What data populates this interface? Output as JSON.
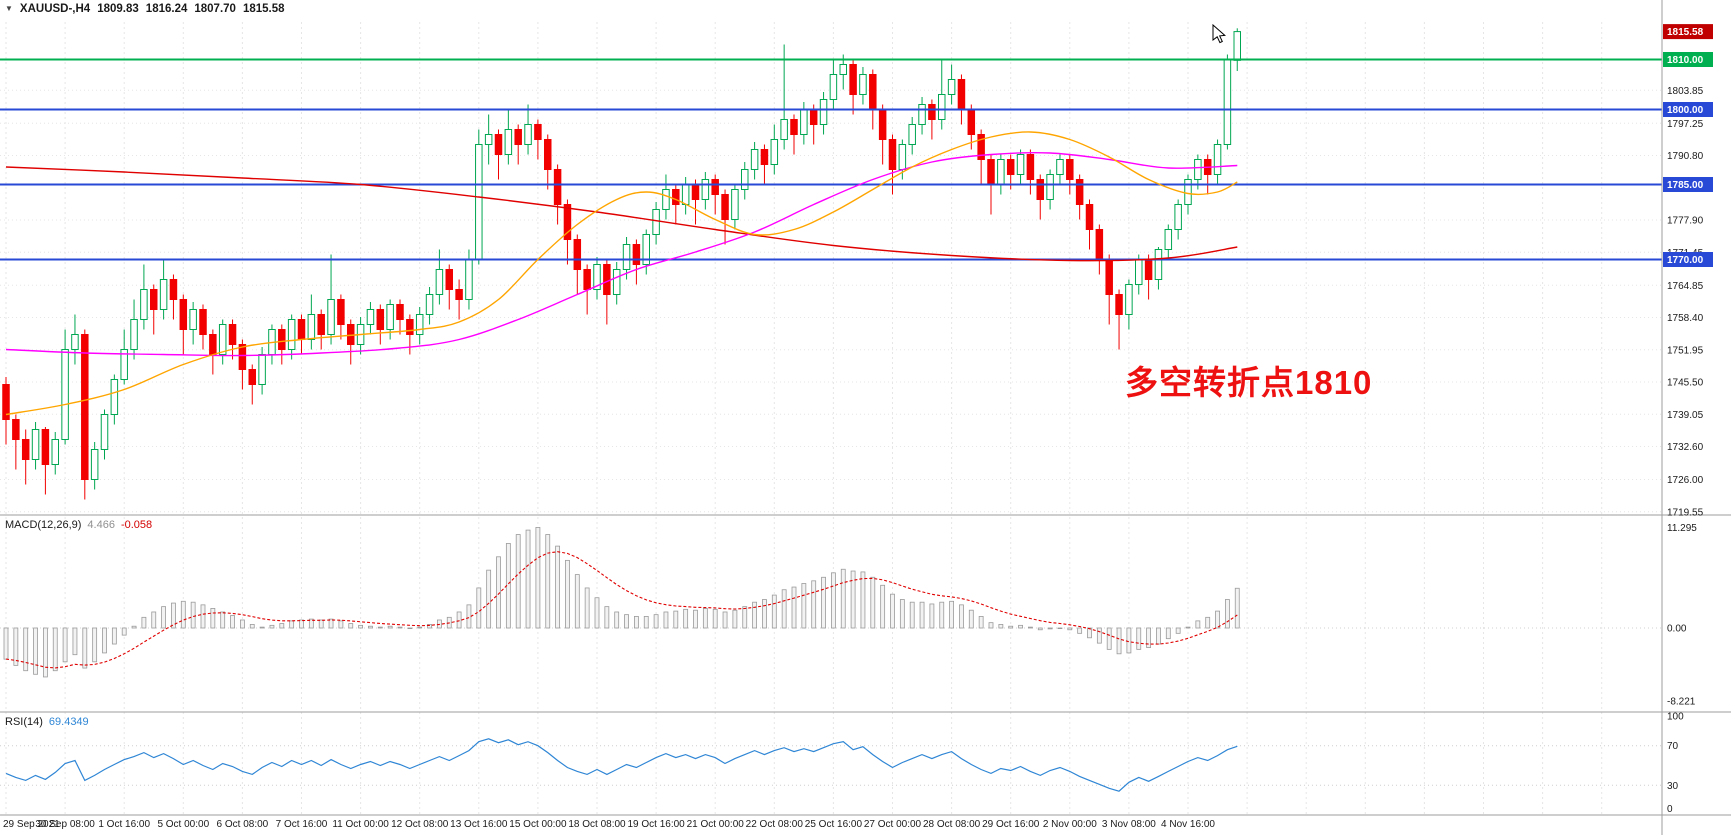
{
  "icons": {
    "symbol_marker": "▼"
  },
  "toolbar": {
    "symbol_period": "XAUUSD-,H4",
    "open": "1809.83",
    "high": "1816.24",
    "low": "1807.70",
    "close": "1815.58"
  },
  "annotation": {
    "text": "多空转折点1810"
  },
  "colors": {
    "candle_up": "#00a651",
    "candle_down": "#f20000",
    "ma_slow_red": "#e00000",
    "ma_medium_magenta": "#ff00ff",
    "ma_fast_orange": "#ffa500",
    "macd_histogram": "#9a9a9a",
    "macd_signal": "#e00000",
    "rsi_line": "#2f86d5",
    "hline_green": "#00b050",
    "hline_blue": "#2849d6",
    "last_price_badge_bg": "#c00000",
    "grid": "#e6e6e6",
    "axis_text": "#1a1a1a",
    "separator": "#9e9e9e",
    "annotation_red": "#ee1111"
  },
  "chart_data": {
    "type": "candlestick",
    "symbol": "XAUUSD-",
    "timeframe": "H4",
    "candles_per_label": 6,
    "x_labels": [
      "29 Sep 2021",
      "30 Sep 08:00",
      "1 Oct 16:00",
      "5 Oct 00:00",
      "6 Oct 08:00",
      "7 Oct 16:00",
      "11 Oct 00:00",
      "12 Oct 08:00",
      "13 Oct 16:00",
      "15 Oct 00:00",
      "18 Oct 08:00",
      "19 Oct 16:00",
      "21 Oct 00:00",
      "22 Oct 08:00",
      "25 Oct 16:00",
      "27 Oct 00:00",
      "28 Oct 08:00",
      "29 Oct 16:00",
      "2 Nov 00:00",
      "3 Nov 08:00",
      "4 Nov 16:00"
    ],
    "price_axis_ticks": [
      "1803.85",
      "1797.25",
      "1790.80",
      "1777.90",
      "1771.45",
      "1764.85",
      "1758.40",
      "1751.95",
      "1745.50",
      "1739.05",
      "1732.60",
      "1726.00",
      "1719.55"
    ],
    "last_price": {
      "label": "1815.58",
      "value": 1815.58
    },
    "hlines": [
      {
        "label": "1810.00",
        "price": 1810.0,
        "color": "#00b050"
      },
      {
        "label": "1800.00",
        "price": 1800.0,
        "color": "#2849d6"
      },
      {
        "label": "1785.00",
        "price": 1785.0,
        "color": "#2849d6"
      },
      {
        "label": "1770.00",
        "price": 1770.0,
        "color": "#2849d6"
      }
    ],
    "candles": [
      [
        1745,
        1746.5,
        1733,
        1738
      ],
      [
        1738,
        1739,
        1728,
        1734
      ],
      [
        1734,
        1736,
        1725,
        1730
      ],
      [
        1730,
        1737.5,
        1728,
        1736
      ],
      [
        1736,
        1736.5,
        1723,
        1729
      ],
      [
        1729,
        1735.5,
        1727,
        1734
      ],
      [
        1734,
        1756,
        1733,
        1752
      ],
      [
        1752,
        1759,
        1749,
        1755
      ],
      [
        1755,
        1756,
        1722,
        1726
      ],
      [
        1726,
        1733.5,
        1724,
        1732
      ],
      [
        1732,
        1740,
        1730,
        1739
      ],
      [
        1739,
        1747,
        1737,
        1746
      ],
      [
        1746,
        1756,
        1745,
        1752
      ],
      [
        1752,
        1762,
        1750,
        1758
      ],
      [
        1758,
        1769,
        1756,
        1764
      ],
      [
        1764,
        1765,
        1755,
        1760
      ],
      [
        1760,
        1770,
        1758,
        1766
      ],
      [
        1766,
        1767,
        1758,
        1762
      ],
      [
        1762,
        1763,
        1751,
        1756
      ],
      [
        1756,
        1761.5,
        1753,
        1760
      ],
      [
        1760,
        1761,
        1752,
        1755
      ],
      [
        1755,
        1756,
        1747,
        1751
      ],
      [
        1751,
        1758,
        1749,
        1757
      ],
      [
        1757,
        1758,
        1750,
        1753
      ],
      [
        1753,
        1754,
        1744,
        1748
      ],
      [
        1748,
        1749,
        1741,
        1745
      ],
      [
        1745,
        1752.5,
        1743,
        1751
      ],
      [
        1751,
        1757,
        1749,
        1756
      ],
      [
        1756,
        1757,
        1749,
        1752
      ],
      [
        1752,
        1759,
        1750,
        1758
      ],
      [
        1758,
        1759,
        1751,
        1754
      ],
      [
        1754,
        1763,
        1752,
        1759
      ],
      [
        1759,
        1760,
        1752,
        1755
      ],
      [
        1755,
        1771,
        1753,
        1762
      ],
      [
        1762,
        1763,
        1754,
        1757
      ],
      [
        1757,
        1758,
        1749,
        1753
      ],
      [
        1753,
        1758.5,
        1751,
        1757
      ],
      [
        1757,
        1761.5,
        1755,
        1760
      ],
      [
        1760,
        1761,
        1753,
        1756
      ],
      [
        1756,
        1762,
        1754,
        1761
      ],
      [
        1761,
        1762,
        1755,
        1758
      ],
      [
        1758,
        1759,
        1751,
        1755
      ],
      [
        1755,
        1760.5,
        1753,
        1759
      ],
      [
        1759,
        1764.5,
        1757,
        1763
      ],
      [
        1763,
        1772,
        1761,
        1768
      ],
      [
        1768,
        1769,
        1760,
        1764
      ],
      [
        1764,
        1766,
        1758,
        1762
      ],
      [
        1762,
        1772,
        1760,
        1770
      ],
      [
        1770,
        1796,
        1769,
        1793
      ],
      [
        1793,
        1799,
        1789,
        1795
      ],
      [
        1795,
        1796,
        1786,
        1791
      ],
      [
        1791,
        1800,
        1789,
        1796
      ],
      [
        1796,
        1797,
        1789,
        1793
      ],
      [
        1793,
        1801,
        1791,
        1797
      ],
      [
        1797,
        1798,
        1790,
        1794
      ],
      [
        1794,
        1795,
        1784,
        1788
      ],
      [
        1788,
        1789,
        1777,
        1781
      ],
      [
        1781,
        1782,
        1769,
        1774
      ],
      [
        1774,
        1775,
        1763,
        1768
      ],
      [
        1768,
        1769,
        1759,
        1764
      ],
      [
        1764,
        1770.5,
        1762,
        1769
      ],
      [
        1769,
        1770,
        1757,
        1763
      ],
      [
        1763,
        1769.5,
        1761,
        1768
      ],
      [
        1768,
        1774.5,
        1766,
        1773
      ],
      [
        1773,
        1774,
        1765,
        1769
      ],
      [
        1769,
        1776,
        1767,
        1775
      ],
      [
        1775,
        1781.5,
        1773,
        1780
      ],
      [
        1780,
        1787,
        1778,
        1784
      ],
      [
        1784,
        1785,
        1777,
        1781
      ],
      [
        1781,
        1786.5,
        1779,
        1785
      ],
      [
        1785,
        1786,
        1777,
        1782
      ],
      [
        1782,
        1787.5,
        1780,
        1786
      ],
      [
        1786,
        1787,
        1779,
        1783
      ],
      [
        1783,
        1784,
        1773,
        1778
      ],
      [
        1778,
        1785,
        1776,
        1784
      ],
      [
        1784,
        1789.5,
        1782,
        1788
      ],
      [
        1788,
        1793.5,
        1786,
        1792
      ],
      [
        1792,
        1793,
        1785,
        1789
      ],
      [
        1789,
        1797,
        1787,
        1794
      ],
      [
        1794,
        1813,
        1792,
        1798
      ],
      [
        1798,
        1799,
        1791,
        1795
      ],
      [
        1795,
        1801.5,
        1793,
        1800
      ],
      [
        1800,
        1801,
        1793,
        1797
      ],
      [
        1797,
        1803.5,
        1795,
        1802
      ],
      [
        1802,
        1810,
        1800,
        1807
      ],
      [
        1807,
        1811,
        1804,
        1809
      ],
      [
        1809,
        1810,
        1799,
        1803
      ],
      [
        1803,
        1808.5,
        1801,
        1807
      ],
      [
        1807,
        1808,
        1796,
        1800
      ],
      [
        1800,
        1801,
        1789,
        1794
      ],
      [
        1794,
        1795,
        1783,
        1788
      ],
      [
        1788,
        1794,
        1786,
        1793
      ],
      [
        1793,
        1798.5,
        1791,
        1797
      ],
      [
        1797,
        1802.5,
        1795,
        1801
      ],
      [
        1801,
        1802,
        1794,
        1798
      ],
      [
        1798,
        1810,
        1796,
        1803
      ],
      [
        1803,
        1809,
        1801,
        1806
      ],
      [
        1806,
        1807,
        1797,
        1800
      ],
      [
        1800,
        1801,
        1792,
        1795
      ],
      [
        1795,
        1796,
        1785,
        1790
      ],
      [
        1790,
        1791,
        1779,
        1785
      ],
      [
        1785,
        1791,
        1783,
        1790
      ],
      [
        1790,
        1791,
        1784,
        1787
      ],
      [
        1787,
        1792,
        1785,
        1791
      ],
      [
        1791,
        1792,
        1783,
        1786
      ],
      [
        1786,
        1787,
        1778,
        1782
      ],
      [
        1782,
        1788,
        1780,
        1787
      ],
      [
        1787,
        1791,
        1785,
        1790
      ],
      [
        1790,
        1791,
        1783,
        1786
      ],
      [
        1786,
        1787,
        1778,
        1781
      ],
      [
        1781,
        1782,
        1772,
        1776
      ],
      [
        1776,
        1777,
        1767,
        1770
      ],
      [
        1770,
        1771,
        1757,
        1763
      ],
      [
        1763,
        1764,
        1752,
        1759
      ],
      [
        1759,
        1766,
        1756,
        1765
      ],
      [
        1765,
        1771,
        1763,
        1770
      ],
      [
        1770,
        1771,
        1762,
        1766
      ],
      [
        1766,
        1772.5,
        1764,
        1772
      ],
      [
        1772,
        1777,
        1770,
        1776
      ],
      [
        1776,
        1782,
        1774,
        1781
      ],
      [
        1781,
        1787,
        1779,
        1786
      ],
      [
        1786,
        1791,
        1784,
        1790
      ],
      [
        1790,
        1791,
        1783,
        1787
      ],
      [
        1787,
        1794,
        1785,
        1793
      ],
      [
        1793,
        1811,
        1792,
        1810
      ],
      [
        1809.83,
        1816.24,
        1807.7,
        1815.58
      ]
    ],
    "moving_averages": [
      {
        "name": "ma-slow",
        "color": "#e00000",
        "points": [
          [
            0,
            1788.5
          ],
          [
            12,
            1787.5
          ],
          [
            24,
            1786.3
          ],
          [
            36,
            1785
          ],
          [
            48,
            1782.5
          ],
          [
            60,
            1779.5
          ],
          [
            72,
            1776
          ],
          [
            84,
            1772.8
          ],
          [
            96,
            1770.8
          ],
          [
            108,
            1769.8
          ],
          [
            118,
            1770.3
          ],
          [
            125,
            1772.5
          ]
        ]
      },
      {
        "name": "ma-medium",
        "color": "#ff00ff",
        "points": [
          [
            0,
            1752
          ],
          [
            8,
            1751.3
          ],
          [
            16,
            1751
          ],
          [
            24,
            1750.8
          ],
          [
            32,
            1751.3
          ],
          [
            40,
            1752.3
          ],
          [
            46,
            1754
          ],
          [
            52,
            1758
          ],
          [
            58,
            1763
          ],
          [
            64,
            1768
          ],
          [
            70,
            1771.5
          ],
          [
            76,
            1775.5
          ],
          [
            82,
            1781
          ],
          [
            88,
            1786
          ],
          [
            94,
            1789.5
          ],
          [
            100,
            1791
          ],
          [
            106,
            1791.3
          ],
          [
            112,
            1790
          ],
          [
            118,
            1788.3
          ],
          [
            125,
            1788.8
          ]
        ]
      },
      {
        "name": "ma-fast",
        "color": "#ffa500",
        "points": [
          [
            0,
            1739
          ],
          [
            6,
            1741
          ],
          [
            12,
            1744
          ],
          [
            18,
            1749
          ],
          [
            24,
            1752.5
          ],
          [
            30,
            1754
          ],
          [
            36,
            1755
          ],
          [
            42,
            1756
          ],
          [
            46,
            1757.5
          ],
          [
            50,
            1762
          ],
          [
            54,
            1770
          ],
          [
            58,
            1777
          ],
          [
            62,
            1782
          ],
          [
            65,
            1783.5
          ],
          [
            68,
            1782
          ],
          [
            72,
            1778
          ],
          [
            76,
            1775
          ],
          [
            80,
            1776
          ],
          [
            84,
            1779.5
          ],
          [
            88,
            1784
          ],
          [
            92,
            1788.5
          ],
          [
            96,
            1792
          ],
          [
            100,
            1794.5
          ],
          [
            104,
            1795.5
          ],
          [
            108,
            1794
          ],
          [
            112,
            1790.5
          ],
          [
            116,
            1786
          ],
          [
            120,
            1783.2
          ],
          [
            123,
            1783.5
          ],
          [
            125,
            1785.5
          ]
        ]
      }
    ],
    "indicators": {
      "macd": {
        "label": "MACD(12,26,9)",
        "main_value": "4.466",
        "signal_value": "-0.058",
        "signal_period": 9,
        "axis_labels": [
          "11.295",
          "0.00",
          "-8.221"
        ],
        "histogram": [
          -3.5,
          -4.2,
          -4.8,
          -5.2,
          -5.5,
          -4.8,
          -3.8,
          -3.0,
          -4.5,
          -3.8,
          -2.8,
          -1.8,
          -0.8,
          0.2,
          1.2,
          1.8,
          2.4,
          2.8,
          3.0,
          2.9,
          2.6,
          2.2,
          1.8,
          1.4,
          0.9,
          0.4,
          0.1,
          0.3,
          0.5,
          0.8,
          0.9,
          1.0,
          0.9,
          1.0,
          0.8,
          0.5,
          0.3,
          0.2,
          0.1,
          0.2,
          0.1,
          0.0,
          0.1,
          0.4,
          0.9,
          1.2,
          1.8,
          2.6,
          4.5,
          6.5,
          8.0,
          9.5,
          10.5,
          11.0,
          11.3,
          10.5,
          9.2,
          7.6,
          6.0,
          4.5,
          3.4,
          2.4,
          1.8,
          1.5,
          1.3,
          1.3,
          1.5,
          1.8,
          1.9,
          2.1,
          2.0,
          2.2,
          2.1,
          1.8,
          2.0,
          2.4,
          2.9,
          3.2,
          3.7,
          4.3,
          4.6,
          5.0,
          5.3,
          5.7,
          6.2,
          6.6,
          6.4,
          6.3,
          5.7,
          4.8,
          3.8,
          3.2,
          2.9,
          2.9,
          2.7,
          2.9,
          3.0,
          2.6,
          2.0,
          1.3,
          0.6,
          0.4,
          0.2,
          0.3,
          0.1,
          -0.2,
          -0.1,
          0.0,
          -0.2,
          -0.6,
          -1.1,
          -1.7,
          -2.4,
          -2.9,
          -2.8,
          -2.4,
          -2.2,
          -1.8,
          -1.2,
          -0.6,
          0.1,
          0.8,
          1.2,
          1.9,
          3.2,
          4.466
        ]
      },
      "rsi": {
        "label": "RSI(14)",
        "value": "69.4349",
        "levels": [
          70,
          30
        ],
        "axis_labels": [
          "100",
          "70",
          "30",
          "0"
        ],
        "values": [
          42,
          38,
          35,
          40,
          36,
          43,
          52,
          55,
          35,
          40,
          46,
          51,
          56,
          59,
          63,
          58,
          62,
          57,
          51,
          55,
          50,
          46,
          52,
          49,
          44,
          41,
          48,
          53,
          49,
          55,
          51,
          55,
          50,
          56,
          51,
          47,
          51,
          54,
          50,
          54,
          51,
          47,
          51,
          55,
          59,
          55,
          60,
          65,
          74,
          77,
          73,
          76,
          71,
          74,
          70,
          63,
          55,
          48,
          44,
          41,
          46,
          41,
          46,
          51,
          48,
          53,
          58,
          62,
          58,
          61,
          57,
          61,
          58,
          52,
          57,
          61,
          65,
          61,
          65,
          68,
          64,
          67,
          64,
          68,
          72,
          74,
          66,
          69,
          61,
          54,
          48,
          53,
          57,
          61,
          57,
          61,
          64,
          57,
          51,
          46,
          42,
          47,
          45,
          49,
          44,
          40,
          45,
          48,
          44,
          39,
          35,
          31,
          27,
          24,
          33,
          38,
          34,
          39,
          44,
          49,
          54,
          58,
          55,
          60,
          66,
          69.4349
        ]
      }
    }
  }
}
